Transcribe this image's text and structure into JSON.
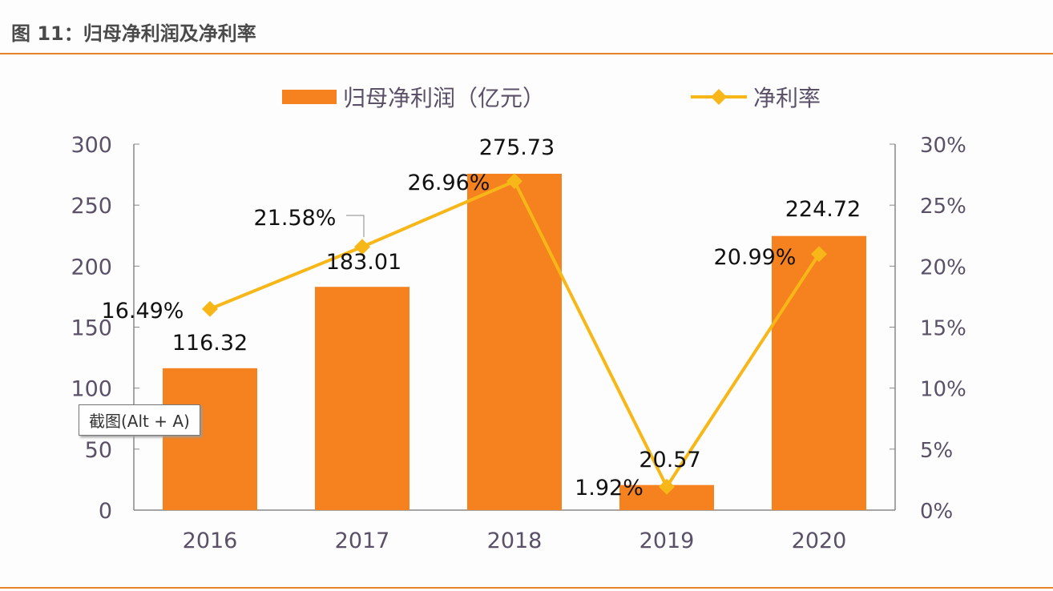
{
  "figure_title": "图 11：归母净利润及净利率",
  "tooltip": "截图(Alt + A)",
  "chart_data": {
    "type": "bar+line",
    "categories": [
      "2016",
      "2017",
      "2018",
      "2019",
      "2020"
    ],
    "series": [
      {
        "name": "归母净利润（亿元）",
        "type": "bar",
        "axis": "left",
        "color": "#f5821f",
        "values": [
          116.32,
          183.01,
          275.73,
          20.57,
          224.72
        ],
        "labels": [
          "116.32",
          "183.01",
          "275.73",
          "20.57",
          "224.72"
        ]
      },
      {
        "name": "净利率",
        "type": "line",
        "axis": "right",
        "color": "#f7b718",
        "values": [
          16.49,
          21.58,
          26.96,
          1.92,
          20.99
        ],
        "labels": [
          "16.49%",
          "21.58%",
          "26.96%",
          "1.92%",
          "20.99%"
        ]
      }
    ],
    "left_axis": {
      "range": [
        0,
        300
      ],
      "ticks": [
        "0",
        "50",
        "100",
        "150",
        "200",
        "250",
        "300"
      ]
    },
    "right_axis": {
      "range": [
        0,
        30
      ],
      "ticks": [
        "0%",
        "5%",
        "10%",
        "15%",
        "20%",
        "25%",
        "30%"
      ]
    },
    "legend_placement": "top",
    "grid": false
  }
}
